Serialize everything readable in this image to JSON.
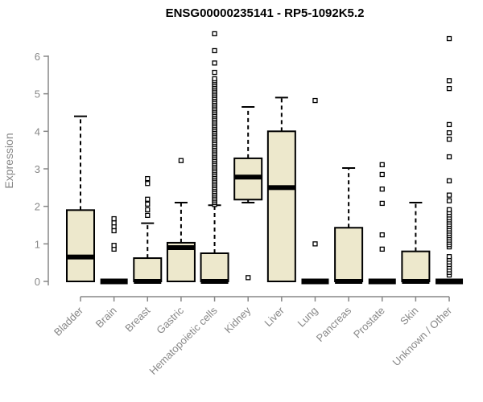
{
  "chart_data": {
    "type": "boxplot",
    "title": "ENSG00000235141 - RP5-1092K5.2",
    "xlabel": "",
    "ylabel": "Expression",
    "ylim": [
      0,
      6.7
    ],
    "yticks": [
      0,
      1,
      2,
      3,
      4,
      5,
      6
    ],
    "grid": false,
    "legend": "none",
    "categories": [
      "Bladder",
      "Brain",
      "Breast",
      "Gastric",
      "Hematopoietic cells",
      "Kidney",
      "Liver",
      "Lung",
      "Pancreas",
      "Prostate",
      "Skin",
      "Unknown / Other"
    ],
    "series": [
      {
        "name": "Bladder",
        "whisker_low": 0,
        "q1": 0,
        "median": 0.65,
        "q3": 1.9,
        "whisker_high": 4.4,
        "outliers": []
      },
      {
        "name": "Brain",
        "whisker_low": 0,
        "q1": 0,
        "median": 0,
        "q3": 0,
        "whisker_high": 0,
        "outliers": [
          0.86,
          0.96,
          1.35,
          1.46,
          1.56,
          1.67
        ]
      },
      {
        "name": "Breast",
        "whisker_low": 0,
        "q1": 0,
        "median": 0,
        "q3": 0.62,
        "whisker_high": 1.55,
        "outliers": [
          1.76,
          1.91,
          2.06,
          2.19,
          2.61,
          2.74
        ]
      },
      {
        "name": "Gastric",
        "whisker_low": 0,
        "q1": 0,
        "median": 0.9,
        "q3": 1.03,
        "whisker_high": 2.1,
        "outliers": [
          3.22
        ]
      },
      {
        "name": "Hematopoietic cells",
        "whisker_low": 0,
        "q1": 0,
        "median": 0,
        "q3": 0.75,
        "whisker_high": 2.03,
        "outliers": [
          2.05,
          2.1,
          2.15,
          2.2,
          2.25,
          2.3,
          2.35,
          2.4,
          2.45,
          2.5,
          2.55,
          2.6,
          2.65,
          2.7,
          2.75,
          2.8,
          2.85,
          2.9,
          2.95,
          3.0,
          3.05,
          3.1,
          3.15,
          3.2,
          3.25,
          3.3,
          3.35,
          3.4,
          3.45,
          3.5,
          3.55,
          3.6,
          3.65,
          3.7,
          3.75,
          3.8,
          3.85,
          3.9,
          3.95,
          4.0,
          4.05,
          4.1,
          4.15,
          4.2,
          4.25,
          4.3,
          4.35,
          4.4,
          4.45,
          4.5,
          4.55,
          4.6,
          4.65,
          4.7,
          4.75,
          4.8,
          4.85,
          4.9,
          4.95,
          5.0,
          5.05,
          5.1,
          5.15,
          5.2,
          5.25,
          5.3,
          5.35,
          5.4,
          5.57,
          5.82,
          6.15,
          6.6
        ]
      },
      {
        "name": "Kidney",
        "whisker_low": 2.1,
        "q1": 2.18,
        "median": 2.78,
        "q3": 3.28,
        "whisker_high": 4.65,
        "outliers": [
          0.1
        ]
      },
      {
        "name": "Liver",
        "whisker_low": 0,
        "q1": 0,
        "median": 2.5,
        "q3": 4.0,
        "whisker_high": 4.9,
        "outliers": []
      },
      {
        "name": "Lung",
        "whisker_low": 0,
        "q1": 0,
        "median": 0,
        "q3": 0,
        "whisker_high": 0,
        "outliers": [
          1.0,
          4.82
        ]
      },
      {
        "name": "Pancreas",
        "whisker_low": 0,
        "q1": 0,
        "median": 0,
        "q3": 1.43,
        "whisker_high": 3.02,
        "outliers": []
      },
      {
        "name": "Prostate",
        "whisker_low": 0,
        "q1": 0,
        "median": 0,
        "q3": 0,
        "whisker_high": 0,
        "outliers": [
          0.86,
          1.24,
          2.08,
          2.46,
          2.85,
          3.11
        ]
      },
      {
        "name": "Skin",
        "whisker_low": 0,
        "q1": 0,
        "median": 0,
        "q3": 0.8,
        "whisker_high": 2.1,
        "outliers": []
      },
      {
        "name": "Unknown / Other",
        "whisker_low": 0,
        "q1": 0,
        "median": 0,
        "q3": 0,
        "whisker_high": 0,
        "outliers": [
          0.17,
          0.24,
          0.31,
          0.38,
          0.45,
          0.52,
          0.59,
          0.66,
          0.92,
          0.98,
          1.04,
          1.1,
          1.16,
          1.22,
          1.28,
          1.34,
          1.4,
          1.46,
          1.52,
          1.58,
          1.64,
          1.7,
          1.77,
          1.84,
          1.91,
          2.15,
          2.3,
          2.68,
          3.32,
          3.79,
          3.96,
          4.18,
          5.14,
          5.35,
          6.47
        ]
      }
    ],
    "colors": {
      "box_fill": "#EDE8CC",
      "box_stroke": "#000000",
      "median": "#000000",
      "whisker": "#000000",
      "outlier_stroke": "#000000",
      "outlier_fill": "#FFFFFF",
      "axis": "#878787",
      "tick_label": "#878787",
      "title": "#000000",
      "background": "#FFFFFF"
    }
  }
}
